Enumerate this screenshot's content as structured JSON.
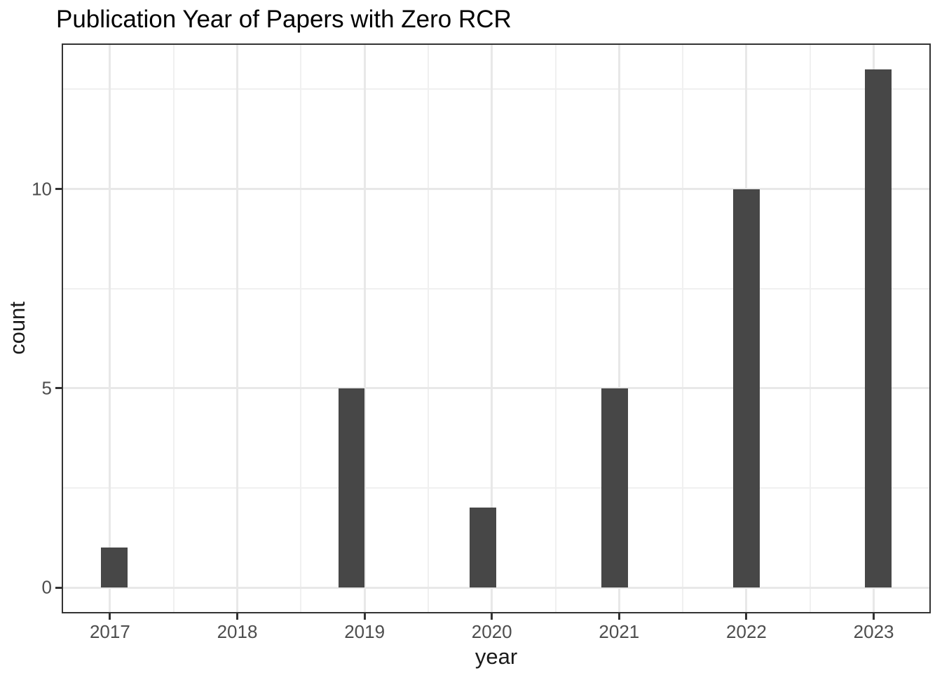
{
  "chart_data": {
    "type": "bar",
    "subtype": "histogram",
    "title": "Publication Year of Papers with Zero RCR",
    "xlabel": "year",
    "ylabel": "count",
    "categories": [
      "2017",
      "2018",
      "2019",
      "2020",
      "2021",
      "2022",
      "2023"
    ],
    "values": [
      1,
      0,
      5,
      2,
      5,
      10,
      13
    ],
    "x_tick_values": [
      2017,
      2018,
      2019,
      2020,
      2021,
      2022,
      2023
    ],
    "x_tick_labels": [
      "2017",
      "2018",
      "2019",
      "2020",
      "2021",
      "2022",
      "2023"
    ],
    "y_tick_values": [
      0,
      5,
      10
    ],
    "y_tick_labels": [
      "0",
      "5",
      "10"
    ],
    "y_minor_gridlines": [
      2.5,
      7.5,
      12.5
    ],
    "x_minor_gridlines": [
      2017.5,
      2018.5,
      2019.5,
      2020.5,
      2021.5,
      2022.5
    ],
    "xlim": [
      2016.6207,
      2023.4483
    ],
    "ylim": [
      -0.65,
      13.65
    ],
    "bar_centers_x": [
      2017.0345,
      2018.069,
      2018.8966,
      2019.931,
      2020.9655,
      2022.0,
      2023.0345
    ],
    "bar_width_x": 0.2069,
    "grid": "on",
    "legend": "none",
    "colors": {
      "bar_fill": "#474747",
      "grid_major": "#e8e8e8",
      "grid_minor": "#f0f0f0",
      "panel_border": "#333333",
      "tick_mark": "#333333",
      "tick_label": "#4d4d4d",
      "axis_title": "#1a1a1a",
      "title": "#000000",
      "panel_background": "#ffffff",
      "plot_background": "#ffffff"
    }
  }
}
